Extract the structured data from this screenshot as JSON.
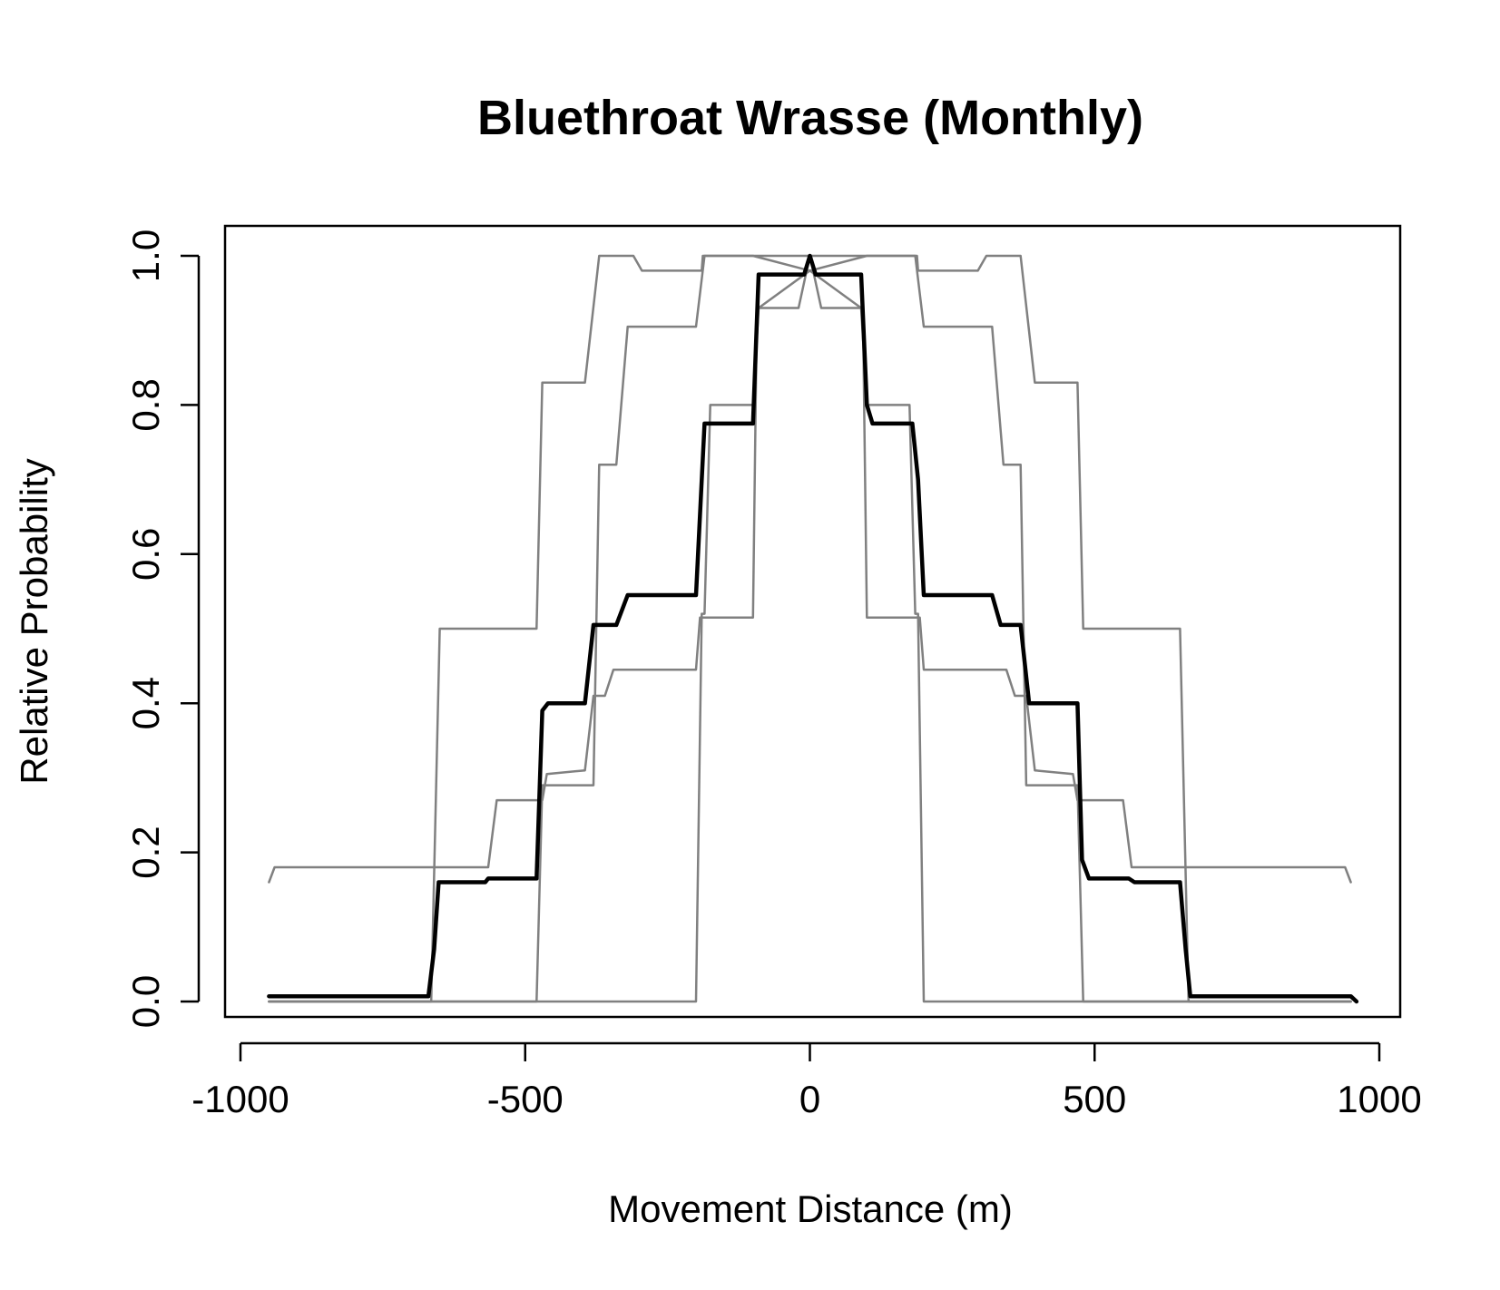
{
  "chart_data": {
    "type": "line",
    "title": "Bluethroat Wrasse (Monthly)",
    "xlabel": "Movement Distance (m)",
    "ylabel": "Relative Probability",
    "xlim": [
      -1000,
      1000
    ],
    "ylim": [
      0,
      1
    ],
    "x_ticks": [
      -1000,
      -500,
      0,
      500,
      1000
    ],
    "x_tick_labels": [
      "-1000",
      "-500",
      "0",
      "500",
      "1000"
    ],
    "y_ticks": [
      0,
      0.2,
      0.4,
      0.6,
      0.8,
      1.0
    ],
    "y_tick_labels": [
      "0.0",
      "0.2",
      "0.4",
      "0.6",
      "0.8",
      "1.0"
    ],
    "grid": false,
    "legend": "none",
    "series": [
      {
        "color": "#808080",
        "linewidth": "thin",
        "points": [
          [
            -950,
            0.16
          ],
          [
            -940,
            0.18
          ],
          [
            -565,
            0.18
          ],
          [
            -550,
            0.27
          ],
          [
            -470,
            0.27
          ],
          [
            -462,
            0.305
          ],
          [
            -395,
            0.31
          ],
          [
            -380,
            0.41
          ],
          [
            -360,
            0.41
          ],
          [
            -345,
            0.445
          ],
          [
            -200,
            0.445
          ],
          [
            -193,
            0.515
          ],
          [
            -100,
            0.515
          ],
          [
            -93,
            0.93
          ],
          [
            -20,
            0.93
          ],
          [
            0,
            1.0
          ],
          [
            20,
            0.93
          ],
          [
            93,
            0.93
          ],
          [
            100,
            0.515
          ],
          [
            193,
            0.515
          ],
          [
            200,
            0.445
          ],
          [
            345,
            0.445
          ],
          [
            360,
            0.41
          ],
          [
            380,
            0.41
          ],
          [
            395,
            0.31
          ],
          [
            462,
            0.305
          ],
          [
            470,
            0.27
          ],
          [
            550,
            0.27
          ],
          [
            565,
            0.18
          ],
          [
            940,
            0.18
          ],
          [
            950,
            0.16
          ]
        ]
      },
      {
        "color": "#808080",
        "linewidth": "thin",
        "points": [
          [
            -950,
            0.0
          ],
          [
            -665,
            0.0
          ],
          [
            -650,
            0.5
          ],
          [
            -480,
            0.5
          ],
          [
            -470,
            0.83
          ],
          [
            -395,
            0.83
          ],
          [
            -370,
            1.0
          ],
          [
            -310,
            1.0
          ],
          [
            -295,
            0.98
          ],
          [
            -190,
            0.98
          ],
          [
            -188,
            1.0
          ],
          [
            -100,
            1.0
          ],
          [
            0,
            0.98
          ],
          [
            100,
            1.0
          ],
          [
            188,
            1.0
          ],
          [
            190,
            0.98
          ],
          [
            295,
            0.98
          ],
          [
            310,
            1.0
          ],
          [
            370,
            1.0
          ],
          [
            395,
            0.83
          ],
          [
            470,
            0.83
          ],
          [
            480,
            0.5
          ],
          [
            650,
            0.5
          ],
          [
            665,
            0.0
          ],
          [
            950,
            0.0
          ]
        ]
      },
      {
        "color": "#808080",
        "linewidth": "thin",
        "points": [
          [
            -950,
            0.0
          ],
          [
            -480,
            0.0
          ],
          [
            -470,
            0.29
          ],
          [
            -380,
            0.29
          ],
          [
            -370,
            0.72
          ],
          [
            -340,
            0.72
          ],
          [
            -320,
            0.905
          ],
          [
            -200,
            0.905
          ],
          [
            -185,
            1.0
          ],
          [
            0,
            1.0
          ],
          [
            185,
            1.0
          ],
          [
            200,
            0.905
          ],
          [
            320,
            0.905
          ],
          [
            340,
            0.72
          ],
          [
            370,
            0.72
          ],
          [
            380,
            0.29
          ],
          [
            470,
            0.29
          ],
          [
            480,
            0.0
          ],
          [
            950,
            0.0
          ]
        ]
      },
      {
        "color": "#808080",
        "linewidth": "thin",
        "points": [
          [
            -950,
            0.0
          ],
          [
            -200,
            0.0
          ],
          [
            -190,
            0.52
          ],
          [
            -185,
            0.52
          ],
          [
            -175,
            0.8
          ],
          [
            -100,
            0.8
          ],
          [
            -90,
            0.93
          ],
          [
            0,
            0.98
          ],
          [
            90,
            0.93
          ],
          [
            100,
            0.8
          ],
          [
            175,
            0.8
          ],
          [
            185,
            0.52
          ],
          [
            190,
            0.52
          ],
          [
            200,
            0.0
          ],
          [
            950,
            0.0
          ]
        ]
      },
      {
        "color": "#000000",
        "linewidth": "thick",
        "points": [
          [
            -950,
            0.007
          ],
          [
            -670,
            0.007
          ],
          [
            -660,
            0.07
          ],
          [
            -652,
            0.16
          ],
          [
            -570,
            0.16
          ],
          [
            -565,
            0.165
          ],
          [
            -480,
            0.165
          ],
          [
            -470,
            0.39
          ],
          [
            -460,
            0.4
          ],
          [
            -395,
            0.4
          ],
          [
            -380,
            0.505
          ],
          [
            -340,
            0.505
          ],
          [
            -320,
            0.545
          ],
          [
            -200,
            0.545
          ],
          [
            -185,
            0.775
          ],
          [
            -100,
            0.775
          ],
          [
            -90,
            0.975
          ],
          [
            -10,
            0.975
          ],
          [
            0,
            1.0
          ],
          [
            10,
            0.975
          ],
          [
            90,
            0.975
          ],
          [
            100,
            0.8
          ],
          [
            110,
            0.775
          ],
          [
            180,
            0.775
          ],
          [
            190,
            0.7
          ],
          [
            200,
            0.545
          ],
          [
            320,
            0.545
          ],
          [
            335,
            0.505
          ],
          [
            370,
            0.505
          ],
          [
            385,
            0.4
          ],
          [
            470,
            0.4
          ],
          [
            478,
            0.19
          ],
          [
            490,
            0.165
          ],
          [
            560,
            0.165
          ],
          [
            570,
            0.16
          ],
          [
            650,
            0.16
          ],
          [
            660,
            0.07
          ],
          [
            668,
            0.007
          ],
          [
            950,
            0.007
          ],
          [
            960,
            0.0
          ]
        ]
      }
    ]
  }
}
